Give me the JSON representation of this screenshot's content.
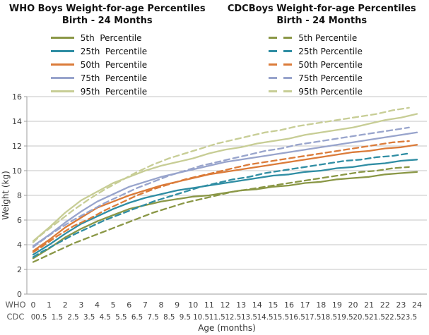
{
  "left_chart": {
    "title_line1": "WHO Boys Weight-for-age Percentiles",
    "title_line2": "Birth - 24 Months",
    "legend": [
      {
        "label": "5th  Percentile",
        "color": "#8A9746",
        "style": "solid"
      },
      {
        "label": "25th  Percentile",
        "color": "#2F8DA3",
        "style": "solid"
      },
      {
        "label": "50th  Percentile",
        "color": "#DB7B39",
        "style": "solid"
      },
      {
        "label": "75th  Percentile",
        "color": "#98A4CC",
        "style": "solid"
      },
      {
        "label": "95th  Percentile",
        "color": "#C7CD95",
        "style": "solid"
      }
    ]
  },
  "right_chart": {
    "title_line1": "CDCBoys Weight-for-age Percentiles",
    "title_line2": "Birth - 24 Months",
    "legend": [
      {
        "label": "5th Percentile",
        "color": "#8A9746",
        "style": "dashed"
      },
      {
        "label": "25th Percentile",
        "color": "#2F8DA3",
        "style": "dashed"
      },
      {
        "label": "50th Percentile",
        "color": "#DB7B39",
        "style": "dashed"
      },
      {
        "label": "75th Percentile",
        "color": "#98A4CC",
        "style": "dashed"
      },
      {
        "label": "95th Percentile",
        "color": "#C7CD95",
        "style": "dashed"
      }
    ]
  },
  "chart_data": {
    "type": "line",
    "title": "WHO vs CDC Boys Weight-for-age Percentiles, Birth - 24 Months",
    "xlabel": "Age (months)",
    "ylabel": "Weight (kg)",
    "ylim": [
      0,
      16
    ],
    "yticks": [
      0,
      2,
      4,
      6,
      8,
      10,
      12,
      14,
      16
    ],
    "xlim": [
      0,
      24
    ],
    "grid": true,
    "legend_position": "top",
    "x_axis_rows": [
      {
        "label": "WHO",
        "positions": [
          0,
          1,
          2,
          3,
          4,
          5,
          6,
          7,
          8,
          9,
          10,
          11,
          12,
          13,
          14,
          15,
          16,
          17,
          18,
          19,
          20,
          21,
          22,
          23,
          24
        ],
        "ticks": [
          "0",
          "1",
          "2",
          "3",
          "4",
          "5",
          "6",
          "7",
          "8",
          "9",
          "10",
          "11",
          "12",
          "13",
          "14",
          "15",
          "16",
          "17",
          "18",
          "19",
          "20",
          "21",
          "22",
          "23",
          "24"
        ]
      },
      {
        "label": "CDC",
        "positions": [
          0,
          0.5,
          1.5,
          2.5,
          3.5,
          4.5,
          5.5,
          6.5,
          7.5,
          8.5,
          9.5,
          10.5,
          11.5,
          12.5,
          13.5,
          14.5,
          15.5,
          16.5,
          17.5,
          18.5,
          19.5,
          20.5,
          21.5,
          22.5,
          23.5
        ],
        "ticks": [
          "0",
          "0.5",
          "1.5",
          "2.5",
          "3.5",
          "4.5",
          "5.5",
          "6.5",
          "7.5",
          "8.5",
          "9.5",
          "10.5",
          "11.5",
          "12.5",
          "13.5",
          "14.5",
          "15.5",
          "16.5",
          "17.5",
          "18.5",
          "19.5",
          "20.5",
          "21.5",
          "22.5",
          "23.5"
        ]
      }
    ],
    "series": [
      {
        "id": "who-p5",
        "name": "WHO 5th Percentile",
        "color": "#8A9746",
        "dash": false,
        "x": [
          0,
          1,
          2,
          3,
          4,
          5,
          6,
          7,
          8,
          9,
          10,
          11,
          12,
          13,
          14,
          15,
          16,
          17,
          18,
          19,
          20,
          21,
          22,
          23,
          24
        ],
        "y": [
          2.9,
          3.7,
          4.6,
          5.3,
          5.9,
          6.4,
          6.9,
          7.2,
          7.5,
          7.7,
          7.9,
          8.0,
          8.2,
          8.4,
          8.5,
          8.7,
          8.8,
          9.0,
          9.1,
          9.3,
          9.4,
          9.5,
          9.7,
          9.8,
          9.9
        ]
      },
      {
        "id": "who-p25",
        "name": "WHO 25th Percentile",
        "color": "#2F8DA3",
        "dash": false,
        "x": [
          0,
          1,
          2,
          3,
          4,
          5,
          6,
          7,
          8,
          9,
          10,
          11,
          12,
          13,
          14,
          15,
          16,
          17,
          18,
          19,
          20,
          21,
          22,
          23,
          24
        ],
        "y": [
          3.2,
          4.0,
          4.9,
          5.7,
          6.3,
          6.9,
          7.4,
          7.8,
          8.1,
          8.4,
          8.6,
          8.8,
          9.0,
          9.2,
          9.4,
          9.6,
          9.7,
          9.9,
          10.0,
          10.2,
          10.3,
          10.5,
          10.6,
          10.8,
          10.9
        ]
      },
      {
        "id": "who-p50",
        "name": "WHO 50th Percentile",
        "color": "#DB7B39",
        "dash": false,
        "x": [
          0,
          1,
          2,
          3,
          4,
          5,
          6,
          7,
          8,
          9,
          10,
          11,
          12,
          13,
          14,
          15,
          16,
          17,
          18,
          19,
          20,
          21,
          22,
          23,
          24
        ],
        "y": [
          3.5,
          4.4,
          5.4,
          6.2,
          7.0,
          7.5,
          8.0,
          8.4,
          8.8,
          9.1,
          9.4,
          9.7,
          9.9,
          10.1,
          10.3,
          10.5,
          10.7,
          10.9,
          11.1,
          11.3,
          11.5,
          11.6,
          11.8,
          11.9,
          12.1
        ]
      },
      {
        "id": "who-p75",
        "name": "WHO 75th Percentile",
        "color": "#98A4CC",
        "dash": false,
        "x": [
          0,
          1,
          2,
          3,
          4,
          5,
          6,
          7,
          8,
          9,
          10,
          11,
          12,
          13,
          14,
          15,
          16,
          17,
          18,
          19,
          20,
          21,
          22,
          23,
          24
        ],
        "y": [
          3.9,
          4.8,
          5.8,
          6.7,
          7.5,
          8.1,
          8.7,
          9.1,
          9.5,
          9.8,
          10.1,
          10.4,
          10.7,
          10.9,
          11.1,
          11.3,
          11.5,
          11.7,
          11.9,
          12.1,
          12.3,
          12.5,
          12.7,
          12.9,
          13.1
        ]
      },
      {
        "id": "who-p95",
        "name": "WHO 95th Percentile",
        "color": "#C7CD95",
        "dash": false,
        "x": [
          0,
          1,
          2,
          3,
          4,
          5,
          6,
          7,
          8,
          9,
          10,
          11,
          12,
          13,
          14,
          15,
          16,
          17,
          18,
          19,
          20,
          21,
          22,
          23,
          24
        ],
        "y": [
          4.3,
          5.4,
          6.6,
          7.6,
          8.3,
          9.0,
          9.5,
          10.0,
          10.4,
          10.7,
          11.0,
          11.4,
          11.7,
          11.9,
          12.2,
          12.4,
          12.6,
          12.9,
          13.1,
          13.3,
          13.5,
          13.8,
          14.1,
          14.3,
          14.6
        ]
      },
      {
        "id": "cdc-p5",
        "name": "CDC 5th Percentile",
        "color": "#8A9746",
        "dash": true,
        "x": [
          0,
          0.5,
          1.5,
          2.5,
          3.5,
          4.5,
          5.5,
          6.5,
          7.5,
          8.5,
          9.5,
          10.5,
          11.5,
          12.5,
          13.5,
          14.5,
          15.5,
          16.5,
          17.5,
          18.5,
          19.5,
          20.5,
          21.5,
          22.5,
          23.5
        ],
        "y": [
          2.6,
          2.9,
          3.5,
          4.1,
          4.6,
          5.1,
          5.6,
          6.1,
          6.6,
          7.0,
          7.4,
          7.7,
          8.0,
          8.3,
          8.5,
          8.7,
          8.9,
          9.1,
          9.3,
          9.5,
          9.7,
          9.9,
          10.0,
          10.2,
          10.3
        ]
      },
      {
        "id": "cdc-p25",
        "name": "CDC 25th Percentile",
        "color": "#2F8DA3",
        "dash": true,
        "x": [
          0,
          0.5,
          1.5,
          2.5,
          3.5,
          4.5,
          5.5,
          6.5,
          7.5,
          8.5,
          9.5,
          10.5,
          11.5,
          12.5,
          13.5,
          14.5,
          15.5,
          16.5,
          17.5,
          18.5,
          19.5,
          20.5,
          21.5,
          22.5,
          23.5
        ],
        "y": [
          3.0,
          3.4,
          4.1,
          4.8,
          5.4,
          6.0,
          6.5,
          7.0,
          7.5,
          7.9,
          8.3,
          8.7,
          9.0,
          9.3,
          9.5,
          9.8,
          10.0,
          10.2,
          10.4,
          10.6,
          10.8,
          10.9,
          11.1,
          11.2,
          11.4
        ]
      },
      {
        "id": "cdc-p50",
        "name": "CDC 50th Percentile",
        "color": "#DB7B39",
        "dash": true,
        "x": [
          0,
          0.5,
          1.5,
          2.5,
          3.5,
          4.5,
          5.5,
          6.5,
          7.5,
          8.5,
          9.5,
          10.5,
          11.5,
          12.5,
          13.5,
          14.5,
          15.5,
          16.5,
          17.5,
          18.5,
          19.5,
          20.5,
          21.5,
          22.5,
          23.5
        ],
        "y": [
          3.4,
          3.8,
          4.7,
          5.5,
          6.1,
          6.8,
          7.4,
          8.0,
          8.5,
          8.9,
          9.3,
          9.6,
          9.9,
          10.2,
          10.5,
          10.7,
          10.9,
          11.1,
          11.3,
          11.5,
          11.7,
          11.9,
          12.1,
          12.3,
          12.4
        ]
      },
      {
        "id": "cdc-p75",
        "name": "CDC 75th Percentile",
        "color": "#98A4CC",
        "dash": true,
        "x": [
          0,
          0.5,
          1.5,
          2.5,
          3.5,
          4.5,
          5.5,
          6.5,
          7.5,
          8.5,
          9.5,
          10.5,
          11.5,
          12.5,
          13.5,
          14.5,
          15.5,
          16.5,
          17.5,
          18.5,
          19.5,
          20.5,
          21.5,
          22.5,
          23.5
        ],
        "y": [
          3.8,
          4.3,
          5.2,
          6.0,
          6.7,
          7.4,
          8.0,
          8.6,
          9.1,
          9.6,
          10.0,
          10.4,
          10.7,
          11.0,
          11.3,
          11.6,
          11.8,
          12.1,
          12.3,
          12.5,
          12.7,
          12.9,
          13.1,
          13.3,
          13.5
        ]
      },
      {
        "id": "cdc-p95",
        "name": "CDC 95th Percentile",
        "color": "#C7CD95",
        "dash": true,
        "x": [
          0,
          0.5,
          1.5,
          2.5,
          3.5,
          4.5,
          5.5,
          6.5,
          7.5,
          8.5,
          9.5,
          10.5,
          11.5,
          12.5,
          13.5,
          14.5,
          15.5,
          16.5,
          17.5,
          18.5,
          19.5,
          20.5,
          21.5,
          22.5,
          23.5
        ],
        "y": [
          4.2,
          4.8,
          5.8,
          6.8,
          7.7,
          8.5,
          9.2,
          9.9,
          10.5,
          11.0,
          11.4,
          11.8,
          12.2,
          12.5,
          12.8,
          13.1,
          13.3,
          13.6,
          13.8,
          14.0,
          14.2,
          14.4,
          14.6,
          14.9,
          15.1
        ]
      }
    ]
  }
}
